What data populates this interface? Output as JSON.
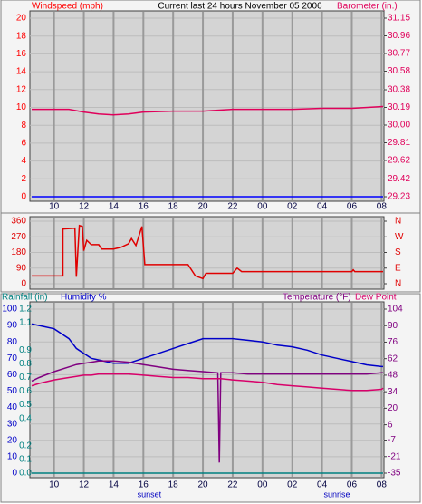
{
  "chart_data": [
    {
      "type": "line",
      "title": "Current last 24 hours November 05 2006",
      "x": [
        8.5,
        10,
        11,
        12,
        13,
        14,
        15,
        16,
        18,
        20,
        21,
        22,
        24,
        26,
        28,
        30,
        32.1
      ],
      "series": [
        {
          "name": "Windspeed (mph)",
          "color": "#0000ff",
          "name_color": "#ff0000",
          "axis": "y",
          "values": [
            0,
            0,
            0,
            0,
            0,
            0,
            0,
            0,
            0,
            0,
            0,
            0,
            0,
            0,
            0,
            0,
            0
          ]
        },
        {
          "name": "Barometer (in.)",
          "color": "#e0005a",
          "axis": "y2",
          "values": [
            30.17,
            30.17,
            30.17,
            30.14,
            30.12,
            30.11,
            30.12,
            30.14,
            30.15,
            30.15,
            30.16,
            30.17,
            30.17,
            30.17,
            30.18,
            30.18,
            30.2
          ]
        }
      ],
      "xlim": [
        8.5,
        32.1
      ],
      "xticks": [
        10,
        12,
        14,
        16,
        18,
        20,
        22,
        {
          "value": 24,
          "label": "00"
        },
        {
          "value": 26,
          "label": "02"
        },
        {
          "value": 28,
          "label": "04"
        },
        {
          "value": 30,
          "label": "06"
        },
        {
          "value": 32,
          "label": "08"
        }
      ],
      "ylim": [
        0,
        20
      ],
      "yticks": [
        0,
        2,
        4,
        6,
        8,
        10,
        12,
        14,
        16,
        18,
        20
      ],
      "y_color": "#ff0000",
      "y2lim": [
        29.23,
        31.15
      ],
      "y2ticks": [
        29.23,
        29.42,
        29.62,
        29.81,
        {
          "value": 30,
          "label": "30.00"
        },
        30.19,
        30.38,
        30.58,
        30.77,
        30.96,
        31.15
      ],
      "y2_color": "#e0005a",
      "annotations": [
        {
          "text": "sunset",
          "x": 16.4
        },
        {
          "text": "sunrise",
          "x": 29
        }
      ],
      "grid": true
    },
    {
      "type": "line",
      "x": [
        8.5,
        10.6,
        10.6,
        11.4,
        11.5,
        11.7,
        11.9,
        12.0,
        12.2,
        12.5,
        13,
        13.2,
        14,
        14.5,
        15,
        15.2,
        15.5,
        15.9,
        16.1,
        18,
        19,
        19.5,
        20,
        20.2,
        22,
        22.3,
        22.6,
        24,
        26,
        28,
        30,
        30.1,
        30.2,
        32.1
      ],
      "series": [
        {
          "color": "#e00000",
          "axis": "y",
          "values": [
            45,
            45,
            315,
            320,
            40,
            335,
            330,
            190,
            250,
            225,
            225,
            200,
            200,
            210,
            230,
            260,
            220,
            330,
            110,
            110,
            110,
            45,
            30,
            60,
            60,
            90,
            70,
            70,
            70,
            70,
            70,
            80,
            70,
            70
          ]
        }
      ],
      "xlim": [
        8.5,
        32.1
      ],
      "xticks": [
        10,
        12,
        14,
        16,
        18,
        20,
        22,
        {
          "value": 24,
          "label": "00"
        },
        {
          "value": 26,
          "label": "02"
        },
        {
          "value": 28,
          "label": "04"
        },
        {
          "value": 30,
          "label": "06"
        },
        {
          "value": 32,
          "label": "08"
        }
      ],
      "ylim": [
        0,
        360
      ],
      "yticks": [
        0,
        90,
        180,
        270,
        360
      ],
      "y_color": "#e00000",
      "y2lim": [
        0,
        360
      ],
      "y2ticks": [
        {
          "value": 0,
          "label": "N"
        },
        {
          "value": 90,
          "label": "E"
        },
        {
          "value": 180,
          "label": "S"
        },
        {
          "value": 270,
          "label": "W"
        },
        {
          "value": 360,
          "label": "N"
        }
      ],
      "y2_color": "#e00000",
      "grid": true
    },
    {
      "type": "line",
      "x": [
        8.5,
        9,
        10,
        11,
        11.5,
        12,
        12.5,
        13,
        14,
        15,
        16,
        17,
        18,
        19,
        20,
        21,
        21.1,
        21.2,
        22,
        23,
        24,
        25,
        26,
        27,
        28,
        29,
        30,
        31,
        32,
        32.1
      ],
      "series": [
        {
          "name": "Rainfall (in)",
          "color": "#008080",
          "axis": "y3",
          "values": [
            0,
            0,
            0,
            0,
            0,
            0,
            0,
            0,
            0,
            0,
            0,
            0,
            0,
            0,
            0,
            0,
            0,
            0,
            0,
            0,
            0,
            0,
            0,
            0,
            0,
            0,
            0,
            0,
            0,
            0
          ]
        },
        {
          "name": "Humidity %",
          "color": "#0000c8",
          "axis": "y",
          "values": [
            91,
            90,
            88,
            82,
            76,
            73,
            70,
            69,
            67,
            67,
            70,
            73,
            76,
            79,
            82,
            82,
            82,
            82,
            82,
            81,
            80,
            78,
            77,
            75,
            72,
            70,
            68,
            66,
            65,
            65
          ]
        },
        {
          "name": "Temperature (°F)",
          "color": "#800080",
          "axis": "y2",
          "values": [
            43,
            46,
            51,
            55,
            57,
            58,
            59,
            60,
            60,
            59,
            57,
            55,
            53,
            52,
            51,
            50,
            -26,
            50,
            50,
            49,
            49,
            49,
            49,
            49,
            49,
            49,
            49,
            49,
            50,
            50
          ]
        },
        {
          "name": "Dew Point",
          "color": "#d8006a",
          "axis": "y2",
          "values": [
            39,
            41,
            44,
            46,
            47,
            48,
            48,
            49,
            49,
            49,
            48,
            47,
            46,
            46,
            45,
            45,
            45,
            45,
            44,
            43,
            42,
            40,
            39,
            38,
            37,
            36,
            35,
            35,
            36,
            37
          ]
        }
      ],
      "xlim": [
        8.5,
        32.1
      ],
      "xticks": [
        10,
        12,
        14,
        16,
        18,
        20,
        22,
        {
          "value": 24,
          "label": "00"
        },
        {
          "value": 26,
          "label": "02"
        },
        {
          "value": 28,
          "label": "04"
        },
        {
          "value": 30,
          "label": "06"
        },
        {
          "value": 32,
          "label": "08"
        }
      ],
      "ylim": [
        0,
        100
      ],
      "yticks": [
        0,
        10,
        20,
        30,
        40,
        50,
        60,
        70,
        80,
        90,
        100
      ],
      "y_color": "#0000c8",
      "y3lim": [
        0,
        1.2
      ],
      "y3ticks": [
        {
          "value": 0,
          "label": "0.0"
        },
        0.1,
        0.2,
        0.4,
        0.5,
        0.6,
        0.7,
        0.8,
        0.9,
        1.1,
        1.2
      ],
      "y3_color": "#008080",
      "y2lim": [
        -35,
        104
      ],
      "y2ticks": [
        -35,
        -21,
        -7,
        6,
        20,
        34,
        48,
        62,
        76,
        90,
        104
      ],
      "y2_color": "#800080",
      "annotations": [
        {
          "text": "sunset",
          "x": 16.4
        },
        {
          "text": "sunrise",
          "x": 29
        }
      ],
      "grid": true
    }
  ]
}
